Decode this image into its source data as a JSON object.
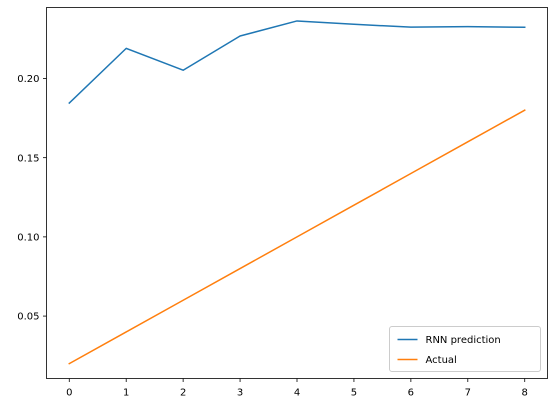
{
  "chart_data": {
    "type": "line",
    "title": "",
    "xlabel": "",
    "ylabel": "",
    "xlim": [
      -0.4,
      8.4
    ],
    "ylim": [
      0.0106,
      0.2448
    ],
    "grid": false,
    "legend_position": "lower-right",
    "x_ticks": [
      0,
      1,
      2,
      3,
      4,
      5,
      6,
      7,
      8
    ],
    "x_tick_labels": [
      "0",
      "1",
      "2",
      "3",
      "4",
      "5",
      "6",
      "7",
      "8"
    ],
    "y_ticks": [
      0.05,
      0.1,
      0.15,
      0.2
    ],
    "y_tick_labels": [
      "0.05",
      "0.10",
      "0.15",
      "0.20"
    ],
    "x": [
      0,
      1,
      2,
      3,
      4,
      5,
      6,
      7,
      8
    ],
    "series": [
      {
        "name": "RNN prediction",
        "color": "#1f77b4",
        "values": [
          0.1845,
          0.219,
          0.2052,
          0.2268,
          0.2363,
          0.2342,
          0.2324,
          0.2327,
          0.2323
        ]
      },
      {
        "name": "Actual",
        "color": "#ff7f0e",
        "values": [
          0.02,
          0.04,
          0.06,
          0.08,
          0.1,
          0.12,
          0.14,
          0.16,
          0.18
        ]
      }
    ]
  }
}
